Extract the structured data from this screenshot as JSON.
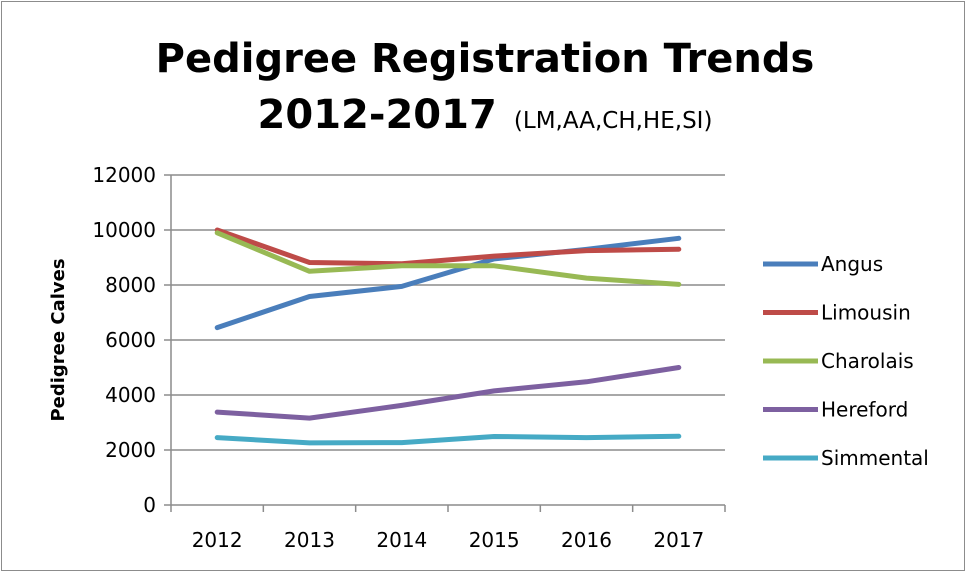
{
  "chart_data": {
    "type": "line",
    "title": "Pedigree Registration Trends",
    "title_line2": "2012-2017",
    "title_suffix": "(LM,AA,CH,HE,SI)",
    "xlabel": "",
    "ylabel": "Pedigree Calves",
    "ylim": [
      0,
      12000
    ],
    "yticks": [
      "0",
      "2000",
      "4000",
      "6000",
      "8000",
      "10000",
      "12000"
    ],
    "categories": [
      "2012",
      "2013",
      "2014",
      "2015",
      "2016",
      "2017"
    ],
    "grid": "horizontal",
    "legend_position": "right",
    "series": [
      {
        "name": "Angus",
        "color": "#4a7ebb",
        "values": [
          6450,
          7580,
          7950,
          8950,
          9300,
          9700
        ]
      },
      {
        "name": "Limousin",
        "color": "#be4b48",
        "values": [
          10000,
          8820,
          8770,
          9050,
          9250,
          9300
        ]
      },
      {
        "name": "Charolais",
        "color": "#98b954",
        "values": [
          9900,
          8500,
          8700,
          8700,
          8250,
          8020
        ]
      },
      {
        "name": "Hereford",
        "color": "#7d60a0",
        "values": [
          3380,
          3160,
          3620,
          4150,
          4480,
          5000
        ]
      },
      {
        "name": "Simmental",
        "color": "#46aac5",
        "values": [
          2450,
          2260,
          2270,
          2490,
          2450,
          2500
        ]
      }
    ]
  }
}
